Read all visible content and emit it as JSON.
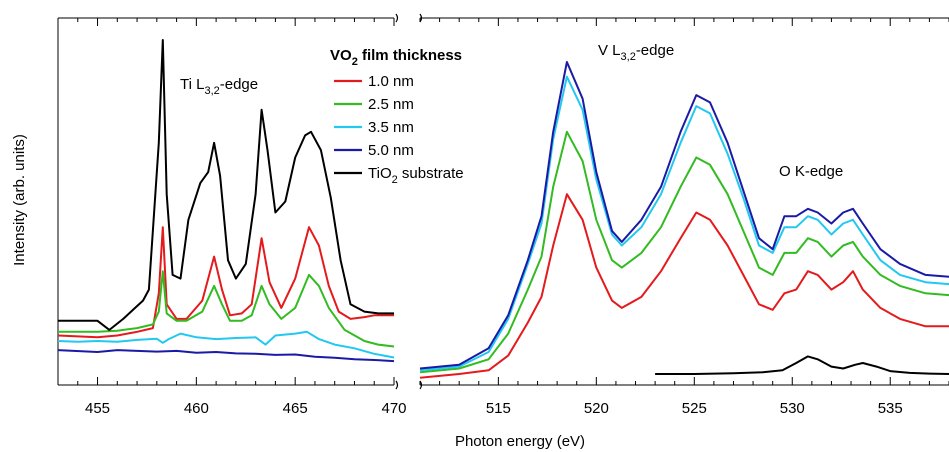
{
  "chart_data": {
    "type": "line",
    "xlabel": "Photon energy (eV)",
    "ylabel": "Intensity (arb. units)",
    "panels": [
      {
        "name": "left",
        "xlim": [
          453,
          470
        ],
        "xticks": [
          455,
          460,
          465,
          470
        ],
        "ylim": [
          0,
          100
        ],
        "annotation": {
          "base": "Ti L",
          "sub": "3,2",
          "tail": "-edge"
        }
      },
      {
        "name": "right",
        "xlim": [
          511,
          538
        ],
        "xticks": [
          515,
          520,
          525,
          530,
          535
        ],
        "ylim": [
          0,
          100
        ],
        "annotations": [
          {
            "base": "V L",
            "sub": "3,2",
            "tail": "-edge"
          },
          {
            "base": "O K-edge",
            "sub": "",
            "tail": ""
          }
        ]
      }
    ],
    "legend": {
      "title_base": "VO",
      "title_sub": "2",
      "title_tail": " film thickness",
      "position": "top-center",
      "entries": [
        {
          "base": "1.0 nm",
          "sub": "",
          "tail": ""
        },
        {
          "base": "2.5 nm",
          "sub": "",
          "tail": ""
        },
        {
          "base": "3.5 nm",
          "sub": "",
          "tail": ""
        },
        {
          "base": "5.0 nm",
          "sub": "",
          "tail": ""
        },
        {
          "base": "TiO",
          "sub": "2",
          "tail": " substrate"
        }
      ]
    },
    "series": [
      {
        "name": "1.0 nm",
        "color": "#e41a1c",
        "left": [
          [
            453,
            13.5
          ],
          [
            455,
            13.0
          ],
          [
            456,
            13.5
          ],
          [
            457,
            14.5
          ],
          [
            457.8,
            15.5
          ],
          [
            458.1,
            25
          ],
          [
            458.3,
            43
          ],
          [
            458.5,
            22
          ],
          [
            459,
            18
          ],
          [
            459.5,
            18
          ],
          [
            460.3,
            23
          ],
          [
            460.9,
            35
          ],
          [
            461.3,
            26
          ],
          [
            461.7,
            19
          ],
          [
            462.3,
            19.5
          ],
          [
            462.8,
            22
          ],
          [
            463.3,
            40
          ],
          [
            463.7,
            28
          ],
          [
            464.3,
            21
          ],
          [
            465,
            29
          ],
          [
            465.7,
            43
          ],
          [
            466.2,
            38
          ],
          [
            466.7,
            27
          ],
          [
            467.2,
            20
          ],
          [
            467.8,
            18
          ],
          [
            468.5,
            18.5
          ],
          [
            469,
            19
          ],
          [
            470,
            19
          ]
        ],
        "right": [
          [
            511,
            2
          ],
          [
            513,
            3
          ],
          [
            514.5,
            4
          ],
          [
            515.5,
            8
          ],
          [
            516.5,
            17
          ],
          [
            517.2,
            24
          ],
          [
            517.8,
            38
          ],
          [
            518.5,
            52
          ],
          [
            519.3,
            45
          ],
          [
            520,
            32
          ],
          [
            520.8,
            23
          ],
          [
            521.3,
            21
          ],
          [
            522.3,
            24
          ],
          [
            523.3,
            31
          ],
          [
            524.3,
            40
          ],
          [
            525.1,
            47
          ],
          [
            525.8,
            45
          ],
          [
            526.7,
            38
          ],
          [
            527.5,
            30
          ],
          [
            528.3,
            22
          ],
          [
            529,
            20.5
          ],
          [
            529.6,
            25
          ],
          [
            530.2,
            26
          ],
          [
            530.8,
            31
          ],
          [
            531.3,
            30
          ],
          [
            532,
            26
          ],
          [
            532.6,
            28
          ],
          [
            533.1,
            31
          ],
          [
            533.6,
            26
          ],
          [
            534.5,
            21
          ],
          [
            535.5,
            18
          ],
          [
            536.8,
            16
          ],
          [
            538,
            16
          ]
        ]
      },
      {
        "name": "2.5 nm",
        "color": "#33bb22",
        "left": [
          [
            453,
            14.5
          ],
          [
            455,
            14.5
          ],
          [
            456,
            14.8
          ],
          [
            457,
            15.5
          ],
          [
            457.8,
            16.5
          ],
          [
            458.1,
            20
          ],
          [
            458.3,
            31
          ],
          [
            458.5,
            19.5
          ],
          [
            459,
            17.5
          ],
          [
            459.5,
            17.5
          ],
          [
            460.3,
            20
          ],
          [
            460.9,
            27
          ],
          [
            461.3,
            22
          ],
          [
            461.7,
            17.5
          ],
          [
            462.3,
            17.5
          ],
          [
            462.8,
            19
          ],
          [
            463.3,
            27
          ],
          [
            463.7,
            22
          ],
          [
            464.3,
            18
          ],
          [
            465,
            21
          ],
          [
            465.7,
            30
          ],
          [
            466.2,
            27
          ],
          [
            466.7,
            21
          ],
          [
            467.5,
            15
          ],
          [
            468.5,
            12
          ],
          [
            469.2,
            11
          ],
          [
            470,
            10.5
          ]
        ],
        "right": [
          [
            511,
            3.5
          ],
          [
            513,
            4.5
          ],
          [
            514.5,
            7
          ],
          [
            515.5,
            14
          ],
          [
            516.5,
            26
          ],
          [
            517.2,
            35
          ],
          [
            517.8,
            54
          ],
          [
            518.5,
            69
          ],
          [
            519.3,
            61
          ],
          [
            520,
            45
          ],
          [
            520.8,
            34
          ],
          [
            521.3,
            32
          ],
          [
            522.3,
            36
          ],
          [
            523.3,
            43
          ],
          [
            524.3,
            54
          ],
          [
            525.1,
            62
          ],
          [
            525.8,
            60
          ],
          [
            526.7,
            52
          ],
          [
            527.5,
            42
          ],
          [
            528.3,
            32
          ],
          [
            529,
            30
          ],
          [
            529.6,
            36
          ],
          [
            530.2,
            36
          ],
          [
            530.8,
            40
          ],
          [
            531.3,
            39
          ],
          [
            532,
            35
          ],
          [
            532.6,
            38
          ],
          [
            533.1,
            39
          ],
          [
            533.6,
            35
          ],
          [
            534.5,
            30
          ],
          [
            535.5,
            27
          ],
          [
            536.8,
            25
          ],
          [
            538,
            24.5
          ]
        ]
      },
      {
        "name": "3.5 nm",
        "color": "#22c8f0",
        "left": [
          [
            453,
            12
          ],
          [
            454,
            11.8
          ],
          [
            455,
            12
          ],
          [
            456,
            11.8
          ],
          [
            457,
            12.3
          ],
          [
            458,
            12.6
          ],
          [
            458.3,
            11.5
          ],
          [
            458.6,
            12.5
          ],
          [
            459.2,
            14
          ],
          [
            460,
            13
          ],
          [
            461,
            12.5
          ],
          [
            462,
            12.8
          ],
          [
            463,
            13
          ],
          [
            463.5,
            11
          ],
          [
            464,
            13.5
          ],
          [
            465,
            14
          ],
          [
            465.6,
            14.5
          ],
          [
            466.2,
            12.5
          ],
          [
            467,
            11
          ],
          [
            468,
            10
          ],
          [
            469,
            8.5
          ],
          [
            470,
            7.5
          ]
        ],
        "right": [
          [
            511,
            4
          ],
          [
            513,
            5
          ],
          [
            514.5,
            9
          ],
          [
            515.5,
            18
          ],
          [
            516.5,
            33
          ],
          [
            517.2,
            44
          ],
          [
            517.8,
            67
          ],
          [
            518.5,
            84
          ],
          [
            519.3,
            75
          ],
          [
            520,
            56
          ],
          [
            520.8,
            41
          ],
          [
            521.3,
            38
          ],
          [
            522.3,
            43
          ],
          [
            523.3,
            52
          ],
          [
            524.3,
            66
          ],
          [
            525.1,
            76
          ],
          [
            525.8,
            74
          ],
          [
            526.7,
            63
          ],
          [
            527.5,
            51
          ],
          [
            528.3,
            38
          ],
          [
            529,
            36
          ],
          [
            529.6,
            43
          ],
          [
            530.2,
            43
          ],
          [
            530.8,
            46
          ],
          [
            531.3,
            45
          ],
          [
            532,
            41
          ],
          [
            532.6,
            44
          ],
          [
            533.1,
            45
          ],
          [
            533.6,
            41
          ],
          [
            534.5,
            34
          ],
          [
            535.5,
            30
          ],
          [
            536.8,
            28
          ],
          [
            538,
            27.5
          ]
        ]
      },
      {
        "name": "5.0 nm",
        "color": "#1a1aa6",
        "left": [
          [
            453,
            9.5
          ],
          [
            455,
            9
          ],
          [
            456,
            9.5
          ],
          [
            457,
            9.3
          ],
          [
            458,
            9.1
          ],
          [
            459,
            9.3
          ],
          [
            460,
            8.8
          ],
          [
            461,
            9
          ],
          [
            462,
            8.6
          ],
          [
            463,
            8.5
          ],
          [
            464,
            8.2
          ],
          [
            465,
            8.3
          ],
          [
            466,
            7.7
          ],
          [
            467,
            7.4
          ],
          [
            468,
            7
          ],
          [
            469,
            6.8
          ],
          [
            470,
            6.5
          ]
        ],
        "right": [
          [
            511,
            4.5
          ],
          [
            513,
            5.5
          ],
          [
            514.5,
            10
          ],
          [
            515.5,
            19
          ],
          [
            516.5,
            34
          ],
          [
            517.2,
            46
          ],
          [
            517.8,
            69
          ],
          [
            518.5,
            88
          ],
          [
            519.3,
            78
          ],
          [
            520,
            58
          ],
          [
            520.8,
            42
          ],
          [
            521.3,
            39
          ],
          [
            522.3,
            45
          ],
          [
            523.3,
            54
          ],
          [
            524.3,
            69
          ],
          [
            525.1,
            79
          ],
          [
            525.8,
            77
          ],
          [
            526.7,
            66
          ],
          [
            527.5,
            53
          ],
          [
            528.3,
            40
          ],
          [
            529,
            37
          ],
          [
            529.6,
            46
          ],
          [
            530.2,
            46
          ],
          [
            530.8,
            48
          ],
          [
            531.3,
            47
          ],
          [
            532,
            44
          ],
          [
            532.6,
            47
          ],
          [
            533.1,
            48
          ],
          [
            533.6,
            44
          ],
          [
            534.5,
            37
          ],
          [
            535.5,
            33
          ],
          [
            536.8,
            30
          ],
          [
            538,
            29.5
          ]
        ]
      },
      {
        "name": "TiO2 substrate",
        "color": "#000000",
        "left": [
          [
            453,
            17.5
          ],
          [
            454,
            17.5
          ],
          [
            455,
            17.5
          ],
          [
            455.6,
            15
          ],
          [
            456.3,
            18
          ],
          [
            456.9,
            21
          ],
          [
            457.3,
            23
          ],
          [
            457.6,
            26
          ],
          [
            458.1,
            66
          ],
          [
            458.3,
            94
          ],
          [
            458.5,
            52
          ],
          [
            458.8,
            30
          ],
          [
            459.2,
            29
          ],
          [
            459.6,
            45
          ],
          [
            460.2,
            55
          ],
          [
            460.6,
            58
          ],
          [
            460.9,
            66
          ],
          [
            461.2,
            57
          ],
          [
            461.6,
            34
          ],
          [
            462,
            29
          ],
          [
            462.5,
            33
          ],
          [
            463,
            52
          ],
          [
            463.3,
            75
          ],
          [
            463.6,
            64
          ],
          [
            464,
            47
          ],
          [
            464.5,
            50
          ],
          [
            465,
            62
          ],
          [
            465.5,
            68
          ],
          [
            465.8,
            69
          ],
          [
            466.3,
            64
          ],
          [
            466.8,
            51
          ],
          [
            467.3,
            34
          ],
          [
            467.8,
            22
          ],
          [
            468.5,
            20
          ],
          [
            469.2,
            19.5
          ],
          [
            470,
            19.5
          ]
        ],
        "right": [
          [
            523,
            3
          ],
          [
            525,
            3
          ],
          [
            527,
            3.2
          ],
          [
            528.5,
            3.5
          ],
          [
            529.5,
            4
          ],
          [
            530.2,
            6
          ],
          [
            530.8,
            7.8
          ],
          [
            531.3,
            7
          ],
          [
            532,
            5
          ],
          [
            532.6,
            4.5
          ],
          [
            533.2,
            5.5
          ],
          [
            533.6,
            6
          ],
          [
            534.3,
            5
          ],
          [
            535,
            3.8
          ],
          [
            536,
            3.3
          ],
          [
            537,
            3.1
          ],
          [
            538,
            3
          ]
        ]
      }
    ]
  }
}
